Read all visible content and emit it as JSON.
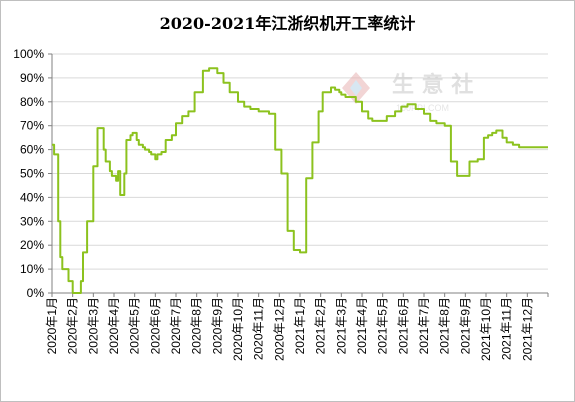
{
  "chart_data": {
    "type": "line",
    "title": "2020-2021年江浙织机开工率统计",
    "xlabel": "",
    "ylabel": "",
    "ylim": [
      0,
      100
    ],
    "grid": "horizontal",
    "legend": "none",
    "y_tick_labels": [
      "0%",
      "10%",
      "20%",
      "30%",
      "40%",
      "50%",
      "60%",
      "70%",
      "80%",
      "90%",
      "100%"
    ],
    "x_tick_labels": [
      "2020年1月",
      "2020年2月",
      "2020年3月",
      "2020年4月",
      "2020年5月",
      "2020年6月",
      "2020年7月",
      "2020年8月",
      "2020年9月",
      "2020年10月",
      "2020年11月",
      "2020年12月",
      "2021年1月",
      "2021年2月",
      "2021年3月",
      "2021年4月",
      "2021年5月",
      "2021年6月",
      "2021年7月",
      "2021年8月",
      "2021年9月",
      "2021年10月",
      "2021年11月",
      "2021年12月"
    ],
    "series": [
      {
        "color": "#8cc21e",
        "x": [
          0,
          0.1,
          0.3,
          0.4,
          0.5,
          0.8,
          1.0,
          1.2,
          1.4,
          1.5,
          1.7,
          2.0,
          2.2,
          2.3,
          2.5,
          2.6,
          2.8,
          2.9,
          3.1,
          3.2,
          3.3,
          3.5,
          3.6,
          3.8,
          3.9,
          4.1,
          4.2,
          4.4,
          4.5,
          4.7,
          4.8,
          5.0,
          5.1,
          5.3,
          5.5,
          5.8,
          6.0,
          6.3,
          6.6,
          6.9,
          7.3,
          7.6,
          8.0,
          8.3,
          8.6,
          9.0,
          9.3,
          9.6,
          9.9,
          10.0,
          10.3,
          10.5,
          10.8,
          11.1,
          11.4,
          11.7,
          12.0,
          12.3,
          12.6,
          12.9,
          13.1,
          13.3,
          13.5,
          13.6,
          13.7,
          13.9,
          14.0,
          14.2,
          14.4,
          14.7,
          15.0,
          15.3,
          15.5,
          15.8,
          16.2,
          16.6,
          16.9,
          17.2,
          17.6,
          18.0,
          18.3,
          18.6,
          19.0,
          19.3,
          19.6,
          19.9,
          20.2,
          20.6,
          20.9,
          21.1,
          21.3,
          21.5,
          21.8,
          22.0,
          22.3,
          22.6,
          22.8,
          23.0,
          23.3,
          23.6,
          23.9,
          24.0
        ],
        "values": [
          62,
          58,
          30,
          15,
          10,
          5,
          0,
          0,
          5,
          17,
          30,
          53,
          69,
          69,
          60,
          55,
          51,
          49,
          47,
          51,
          41,
          50,
          64,
          66,
          67,
          64,
          62,
          61,
          60,
          59,
          58,
          56,
          58,
          59,
          64,
          66,
          71,
          74,
          76,
          84,
          93,
          94,
          92,
          88,
          84,
          80,
          78,
          77,
          77,
          76,
          76,
          75,
          60,
          50,
          26,
          18,
          17,
          48,
          63,
          76,
          84,
          84,
          86,
          86,
          85,
          84,
          83,
          82,
          82,
          80,
          76,
          73,
          72,
          72,
          74,
          76,
          78,
          79,
          77,
          75,
          72,
          71,
          70,
          55,
          49,
          49,
          55,
          56,
          65,
          66,
          67,
          68,
          65,
          63,
          62,
          61,
          61,
          61,
          61,
          61,
          61,
          61
        ]
      }
    ]
  },
  "watermark": {
    "text": "生 意 社",
    "url": "100PPI.COM"
  }
}
